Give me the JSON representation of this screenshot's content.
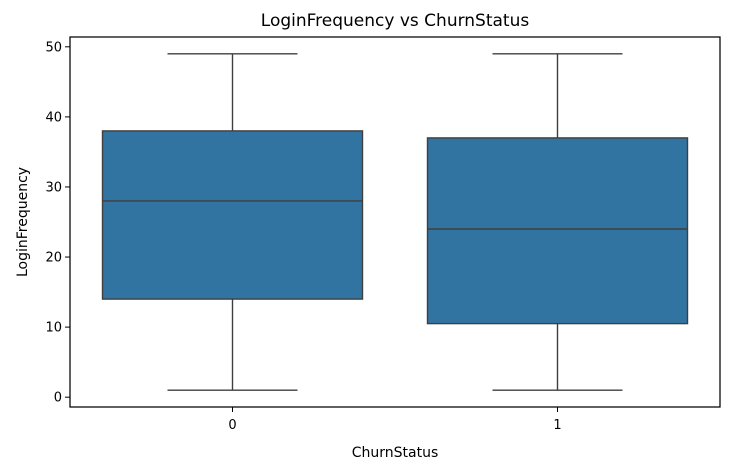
{
  "chart_data": {
    "type": "box",
    "title": "LoginFrequency vs ChurnStatus",
    "xlabel": "ChurnStatus",
    "ylabel": "LoginFrequency",
    "categories": [
      "0",
      "1"
    ],
    "ylim": [
      -1.4,
      51.4
    ],
    "yticks": [
      0,
      10,
      20,
      30,
      40,
      50
    ],
    "grid": false,
    "boxes": [
      {
        "category": "0",
        "whisker_low": 1,
        "q1": 14,
        "median": 28,
        "q3": 38,
        "whisker_high": 49
      },
      {
        "category": "1",
        "whisker_low": 1,
        "q1": 10.5,
        "median": 24,
        "q3": 37,
        "whisker_high": 49
      }
    ],
    "colors": {
      "box_fill": "#3274a1",
      "line": "#3f3f3f",
      "axis": "#000000"
    }
  }
}
